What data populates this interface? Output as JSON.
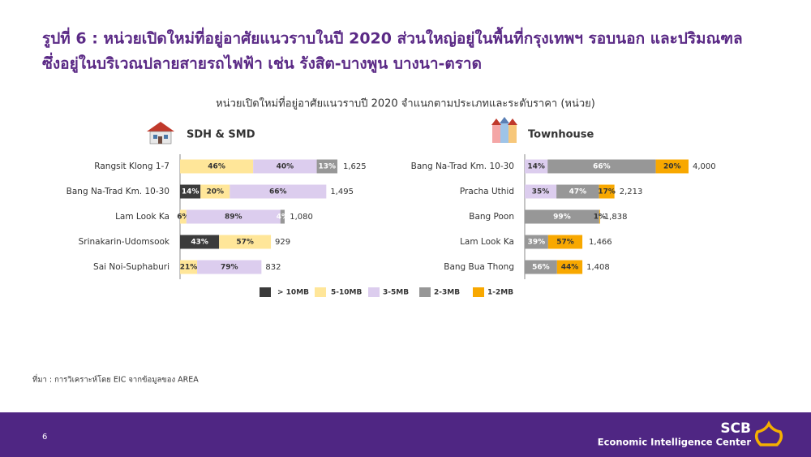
{
  "heading": [
    "รูปที่ 6 : หน่วยเปิดใหม่ที่อยู่อาศัยแนวราบในปี 2020 ส่วนใหญ่อยู่ในพื้นที่กรุงเทพฯ รอบนอก และปริมณฑล",
    "ซึ่งอยู่ในบริเวณปลายสายรถไฟฟ้า เช่น รังสิต-บางพูน บางนา-ตราด"
  ],
  "chart_data": {
    "type": "bar",
    "orientation": "horizontal",
    "stacked": true,
    "title": "หน่วยเปิดใหม่ที่อยู่อาศัยแนวราบปี 2020 จำแนกตามประเภทและระดับราคา (หน่วย)",
    "series": [
      {
        "name": "> 10MB",
        "color": "#3b3b3b"
      },
      {
        "name": "5-10MB",
        "color": "#ffe699"
      },
      {
        "name": "3-5MB",
        "color": "#dccdee"
      },
      {
        "name": "2-3MB",
        "color": "#979797"
      },
      {
        "name": "1-2MB",
        "color": "#f8a800"
      }
    ],
    "panels": [
      {
        "title": "SDH & SMD",
        "categories": [
          "Rangsit Klong 1-7",
          "Bang Na-Trad Km. 10-30",
          "Lam Look Ka",
          "Srinakarin-Udomsook",
          "Sai Noi-Suphaburi"
        ],
        "totals": [
          1625,
          1495,
          1080,
          929,
          832
        ],
        "total_labels": [
          "1,625",
          "1,495",
          "1,080",
          "929",
          "832"
        ],
        "series": [
          {
            "values": [
              null,
              14,
              null,
              43,
              null
            ],
            "value_labels": [
              null,
              "14%",
              null,
              "43%",
              null
            ]
          },
          {
            "values": [
              46,
              20,
              6,
              57,
              21
            ],
            "value_labels": [
              "46%",
              "20%",
              "6%",
              "57%",
              "21%"
            ]
          },
          {
            "values": [
              40,
              66,
              89,
              null,
              79
            ],
            "value_labels": [
              "40%",
              "66%",
              "89%",
              null,
              "79%"
            ]
          },
          {
            "values": [
              13,
              null,
              4,
              null,
              null
            ],
            "value_labels": [
              "13%",
              null,
              "4%",
              null,
              null
            ]
          },
          {
            "values": [
              null,
              null,
              null,
              null,
              null
            ],
            "value_labels": [
              null,
              null,
              null,
              null,
              null
            ]
          }
        ]
      },
      {
        "title": "Townhouse",
        "categories": [
          "Bang Na-Trad Km. 10-30",
          "Pracha Uthid",
          "Bang Poon",
          "Lam Look Ka",
          "Bang Bua Thong"
        ],
        "totals": [
          4000,
          2213,
          1838,
          1466,
          1408
        ],
        "total_labels": [
          "4,000",
          "2,213",
          "1,838",
          "1,466",
          "1,408"
        ],
        "series": [
          {
            "values": [
              null,
              null,
              null,
              null,
              null
            ],
            "value_labels": [
              null,
              null,
              null,
              null,
              null
            ]
          },
          {
            "values": [
              null,
              null,
              null,
              null,
              null
            ],
            "value_labels": [
              null,
              null,
              null,
              null,
              null
            ]
          },
          {
            "values": [
              14,
              35,
              null,
              null,
              null
            ],
            "value_labels": [
              "14%",
              "35%",
              null,
              null,
              null
            ]
          },
          {
            "values": [
              66,
              47,
              99,
              39,
              56
            ],
            "value_labels": [
              "66%",
              "47%",
              "99%",
              "39%",
              "56%"
            ]
          },
          {
            "values": [
              20,
              17,
              1,
              57,
              44
            ],
            "value_labels": [
              "20%",
              "17%",
              "1%",
              "57%",
              "44%"
            ]
          }
        ]
      }
    ]
  },
  "source": "ที่มา : การวิเคราะห์โดย EIC จากข้อมูลของ AREA",
  "footer": {
    "page": "6",
    "brand": "SCB",
    "unit": "Economic Intelligence Center"
  }
}
